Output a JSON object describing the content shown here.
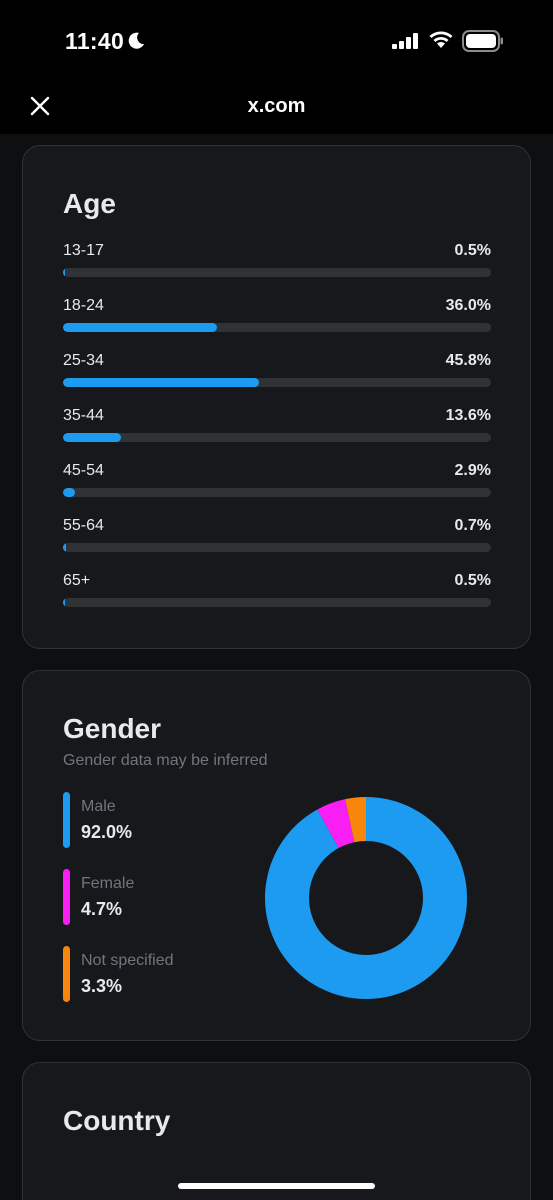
{
  "status_bar": {
    "time": "11:40"
  },
  "nav": {
    "title": "x.com"
  },
  "age": {
    "title": "Age",
    "rows": [
      {
        "label": "13-17",
        "value": "0.5%",
        "percent": 0.5
      },
      {
        "label": "18-24",
        "value": "36.0%",
        "percent": 36.0
      },
      {
        "label": "25-34",
        "value": "45.8%",
        "percent": 45.8
      },
      {
        "label": "35-44",
        "value": "13.6%",
        "percent": 13.6
      },
      {
        "label": "45-54",
        "value": "2.9%",
        "percent": 2.9
      },
      {
        "label": "55-64",
        "value": "0.7%",
        "percent": 0.7
      },
      {
        "label": "65+",
        "value": "0.5%",
        "percent": 0.5
      }
    ]
  },
  "gender": {
    "title": "Gender",
    "subtitle": "Gender data may be inferred",
    "items": [
      {
        "label": "Male",
        "value": "92.0%",
        "percent": 92.0,
        "color": "#1d9bf0"
      },
      {
        "label": "Female",
        "value": "4.7%",
        "percent": 4.7,
        "color": "#f91ef4"
      },
      {
        "label": "Not specified",
        "value": "3.3%",
        "percent": 3.3,
        "color": "#f7860b"
      }
    ]
  },
  "country": {
    "title": "Country"
  }
}
